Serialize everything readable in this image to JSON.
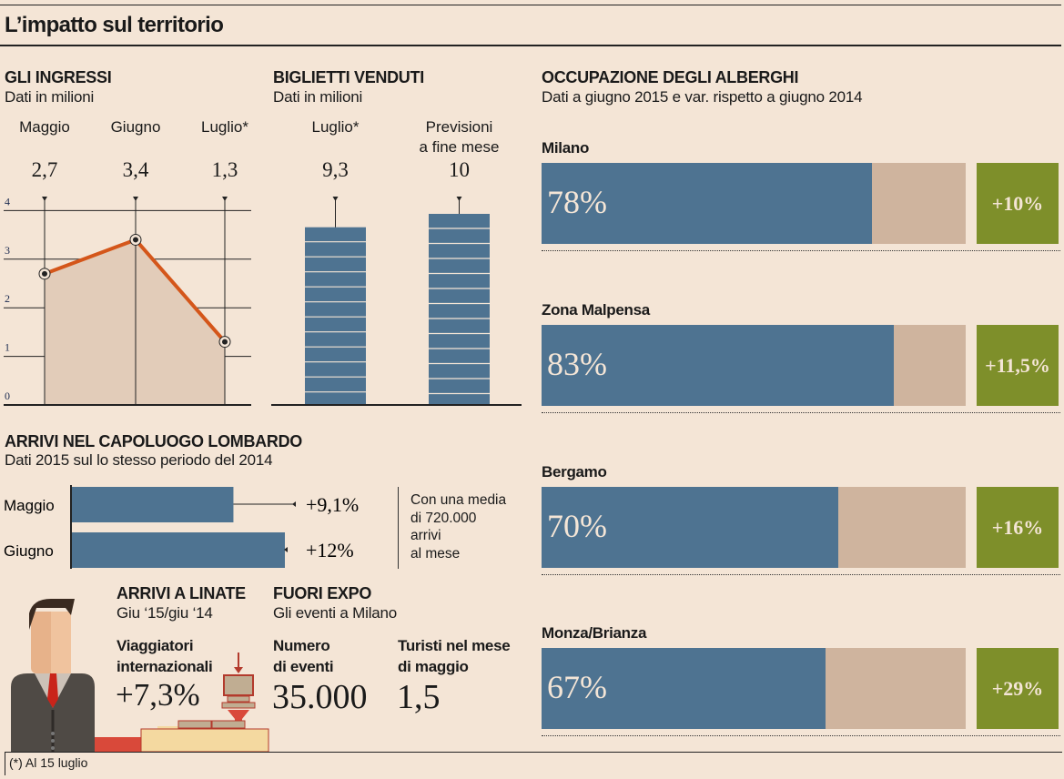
{
  "title": "L’impatto sul territorio",
  "ingressi": {
    "heading": "GLI INGRESSI",
    "subtitle": "Dati in milioni"
  },
  "biglietti": {
    "heading": "BIGLIETTI VENDUTI",
    "subtitle": "Dati in milioni"
  },
  "alberghi": {
    "heading": "OCCUPAZIONE DEGLI ALBERGHI",
    "subtitle": "Dati a giugno 2015 e var. rispetto a giugno 2014"
  },
  "arrivi": {
    "heading": "ARRIVI NEL CAPOLUOGO LOMBARDO",
    "subtitle": "Dati 2015 sul lo stesso periodo del 2014",
    "note": [
      "Con una media",
      "di 720.000",
      "arrivi",
      "al mese"
    ]
  },
  "linate": {
    "heading": "ARRIVI A LINATE",
    "subtitle": "Giu ‘15/giu ‘14",
    "label1": "Viaggiatori",
    "label2": "internazionali",
    "value": "+7,3%"
  },
  "fuori_expo": {
    "heading": "FUORI EXPO",
    "subtitle": "Gli eventi a Milano",
    "eventi_label1": "Numero",
    "eventi_label2": "di eventi",
    "eventi_value": "35.000",
    "turisti_label1": "Turisti nel mese",
    "turisti_label2": "di maggio",
    "turisti_value": "1,5"
  },
  "footnote": "(*) Al 15 luglio",
  "colors": {
    "blue": "#4e7391",
    "tan": "#cfb49e",
    "green": "#7e8f2a",
    "line": "#d4561a",
    "area": "#e2ccb9"
  },
  "chart_data": [
    {
      "type": "line",
      "title": "GLI INGRESSI",
      "categories": [
        "Maggio",
        "Giugno",
        "Luglio*"
      ],
      "values": [
        2.7,
        3.4,
        1.3
      ],
      "value_labels": [
        "2,7",
        "3,4",
        "1,3"
      ],
      "yticks": [
        "0",
        "1",
        "2",
        "3",
        "4"
      ],
      "ylim": [
        0,
        4
      ],
      "grid": true
    },
    {
      "type": "bar",
      "title": "BIGLIETTI VENDUTI",
      "categories": [
        "Luglio*",
        "Previsioni a fine mese"
      ],
      "category_lines": [
        [
          "Luglio*"
        ],
        [
          "Previsioni",
          "a fine mese"
        ]
      ],
      "values": [
        9.3,
        10
      ],
      "value_labels": [
        "9,3",
        "10"
      ],
      "ylim": [
        0,
        10
      ]
    },
    {
      "type": "bar",
      "orientation": "horizontal",
      "title": "ARRIVI NEL CAPOLUOGO LOMBARDO",
      "categories": [
        "Maggio",
        "Giugno"
      ],
      "values": [
        9.1,
        12
      ],
      "value_labels": [
        "+9,1%",
        "+12%"
      ]
    },
    {
      "type": "bar",
      "orientation": "horizontal",
      "title": "OCCUPAZIONE DEGLI ALBERGHI",
      "categories": [
        "Milano",
        "Zona Malpensa",
        "Bergamo",
        "Monza/Brianza"
      ],
      "values": [
        78,
        83,
        70,
        67
      ],
      "value_labels": [
        "78%",
        "83%",
        "70%",
        "67%"
      ],
      "variations": [
        "+10%",
        "+11,5%",
        "+16%",
        "+29%"
      ],
      "ylim": [
        0,
        100
      ]
    }
  ]
}
